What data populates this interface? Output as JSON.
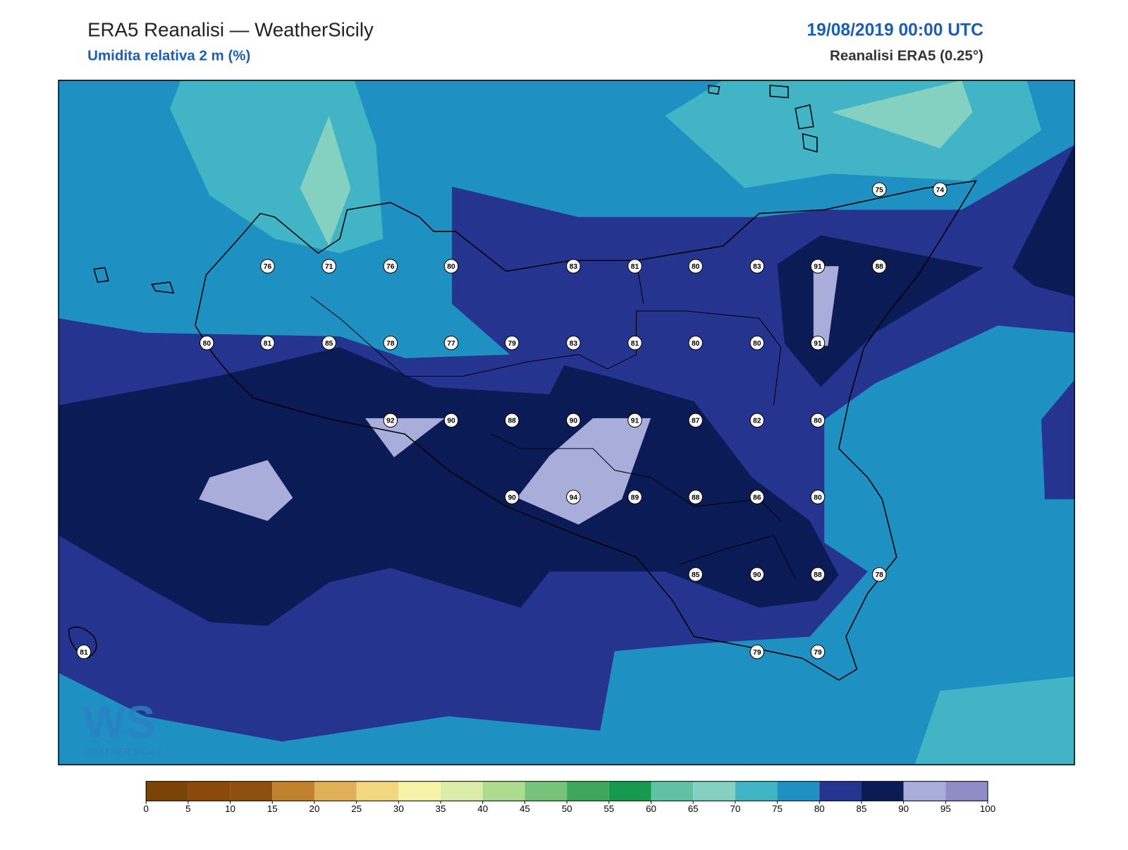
{
  "header": {
    "title": "ERA5 Reanalisi — WeatherSicily",
    "subtitle": "Umidita relativa 2 m (%)",
    "datetime": "19/08/2019 00:00 UTC",
    "source": "Reanalisi ERA5 (0.25°)"
  },
  "stations": [
    76,
    71,
    76,
    80,
    83,
    81,
    80,
    83,
    91,
    88,
    75,
    74,
    80,
    81,
    85,
    78,
    77,
    79,
    83,
    81,
    80,
    80,
    91,
    92,
    90,
    88,
    90,
    91,
    87,
    82,
    80,
    90,
    94,
    89,
    88,
    86,
    80,
    85,
    90,
    88,
    78,
    81,
    79,
    79
  ],
  "colorbar": {
    "ticks": [
      0,
      5,
      10,
      15,
      20,
      25,
      30,
      35,
      40,
      45,
      50,
      55,
      60,
      65,
      70,
      75,
      80,
      85,
      90,
      95,
      100
    ],
    "colors": [
      "#7b4306",
      "#8b4a0c",
      "#8f4f10",
      "#c0812c",
      "#dfb057",
      "#f2d680",
      "#f6f4a8",
      "#dcedaa",
      "#aedc8f",
      "#77c37a",
      "#3ea85a",
      "#179a50",
      "#5fc2a2",
      "#84d0c1",
      "#41b5c6",
      "#1f90c2",
      "#25348f",
      "#0a1b55",
      "#a8add9",
      "#8f8cc8"
    ]
  },
  "logo": "WEATHER SICILY"
}
